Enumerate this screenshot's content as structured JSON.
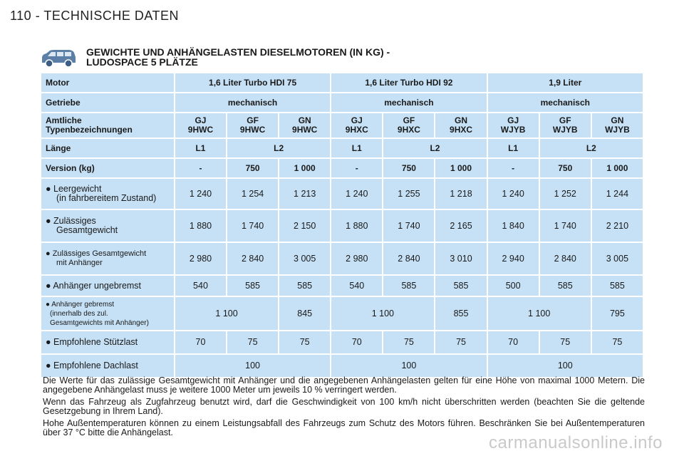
{
  "header": {
    "page": "110 - TECHNISCHE DATEN"
  },
  "section": {
    "title_line1": "GEWICHTE UND ANHÄNGELASTEN DIESELMOTOREN (IN KG) -",
    "title_line2": "LUDOSPACE 5 PLÄTZE",
    "icon": "car-icon"
  },
  "table": {
    "motor": {
      "label": "Motor",
      "values": [
        "1,6 Liter Turbo HDI 75",
        "1,6 Liter Turbo HDI 92",
        "1,9 Liter"
      ]
    },
    "getriebe": {
      "label": "Getriebe",
      "values": [
        "mechanisch",
        "mechanisch",
        "mechanisch"
      ]
    },
    "typen": {
      "label_line1": "Amtliche",
      "label_line2": "Typenbezeichnungen",
      "values": [
        [
          "GJ",
          "9HWC"
        ],
        [
          "GF",
          "9HWC"
        ],
        [
          "GN",
          "9HWC"
        ],
        [
          "GJ",
          "9HXC"
        ],
        [
          "GF",
          "9HXC"
        ],
        [
          "GN",
          "9HXC"
        ],
        [
          "GJ",
          "WJYB"
        ],
        [
          "GF",
          "WJYB"
        ],
        [
          "GN",
          "WJYB"
        ]
      ]
    },
    "laenge": {
      "label": "Länge",
      "values": [
        "L1",
        "L2",
        "L1",
        "L2",
        "L1",
        "L2"
      ]
    },
    "version": {
      "label": "Version (kg)",
      "values": [
        "-",
        "750",
        "1 000",
        "-",
        "750",
        "1 000",
        "-",
        "750",
        "1 000"
      ]
    },
    "leergewicht": {
      "label_line1": "● Leergewicht",
      "label_line2": "(in fahrbereitem Zustand)",
      "values": [
        "1 240",
        "1 254",
        "1 213",
        "1 240",
        "1 255",
        "1 218",
        "1 240",
        "1 252",
        "1 244"
      ]
    },
    "zul_gesamt": {
      "label_line1": "● Zulässiges",
      "label_line2": "Gesamtgewicht",
      "values": [
        "1 880",
        "1 740",
        "2 150",
        "1 880",
        "1 740",
        "2 165",
        "1 840",
        "1 740",
        "2 210"
      ]
    },
    "zul_gesamt_anh": {
      "label_line1": "● Zulässiges Gesamtgewicht",
      "label_line2": "mit Anhänger",
      "values": [
        "2 980",
        "2 840",
        "3 005",
        "2 980",
        "2 840",
        "3 010",
        "2 940",
        "2 840",
        "3 005"
      ]
    },
    "anh_ungebremst": {
      "label": "● Anhänger ungebremst",
      "values": [
        "540",
        "585",
        "585",
        "540",
        "585",
        "585",
        "500",
        "585",
        "585"
      ]
    },
    "anh_gebremst": {
      "label_line1": "● Anhänger gebremst",
      "label_line2": "(innerhalb des zul.",
      "label_line3": "Gesamtgewichts mit Anhänger)",
      "values": [
        "1 100",
        "845",
        "1 100",
        "855",
        "1 100",
        "795"
      ]
    },
    "stuetzlast": {
      "label": "● Empfohlene Stützlast",
      "values": [
        "70",
        "75",
        "75",
        "70",
        "75",
        "75",
        "70",
        "75",
        "75"
      ]
    },
    "dachlast": {
      "label": "● Empfohlene Dachlast",
      "values": [
        "100",
        "100",
        "100"
      ]
    }
  },
  "notes": [
    "Die Werte für das zulässige Gesamtgewicht mit Anhänger und die angegebenen Anhängelasten gelten für eine Höhe von maximal 1000 Metern. Die angegebene Anhängelast muss je weitere 1000 Meter um jeweils 10 % verringert werden.",
    "Wenn das Fahrzeug als Zugfahrzeug benutzt wird, darf die Geschwindigkeit von 100 km/h nicht überschritten werden (beachten Sie die geltende Gesetzgebung in Ihrem Land).",
    "Hohe Außentemperaturen können zu einem Leistungsabfall des Fahrzeugs zum Schutz des Motors führen. Beschränken Sie bei Außentemperaturen über 37 °C bitte die Anhängelast."
  ],
  "watermark": "carmanualsonline.info",
  "colors": {
    "cell_bg": "#c6e1f5",
    "icon": "#5b7fa6"
  }
}
